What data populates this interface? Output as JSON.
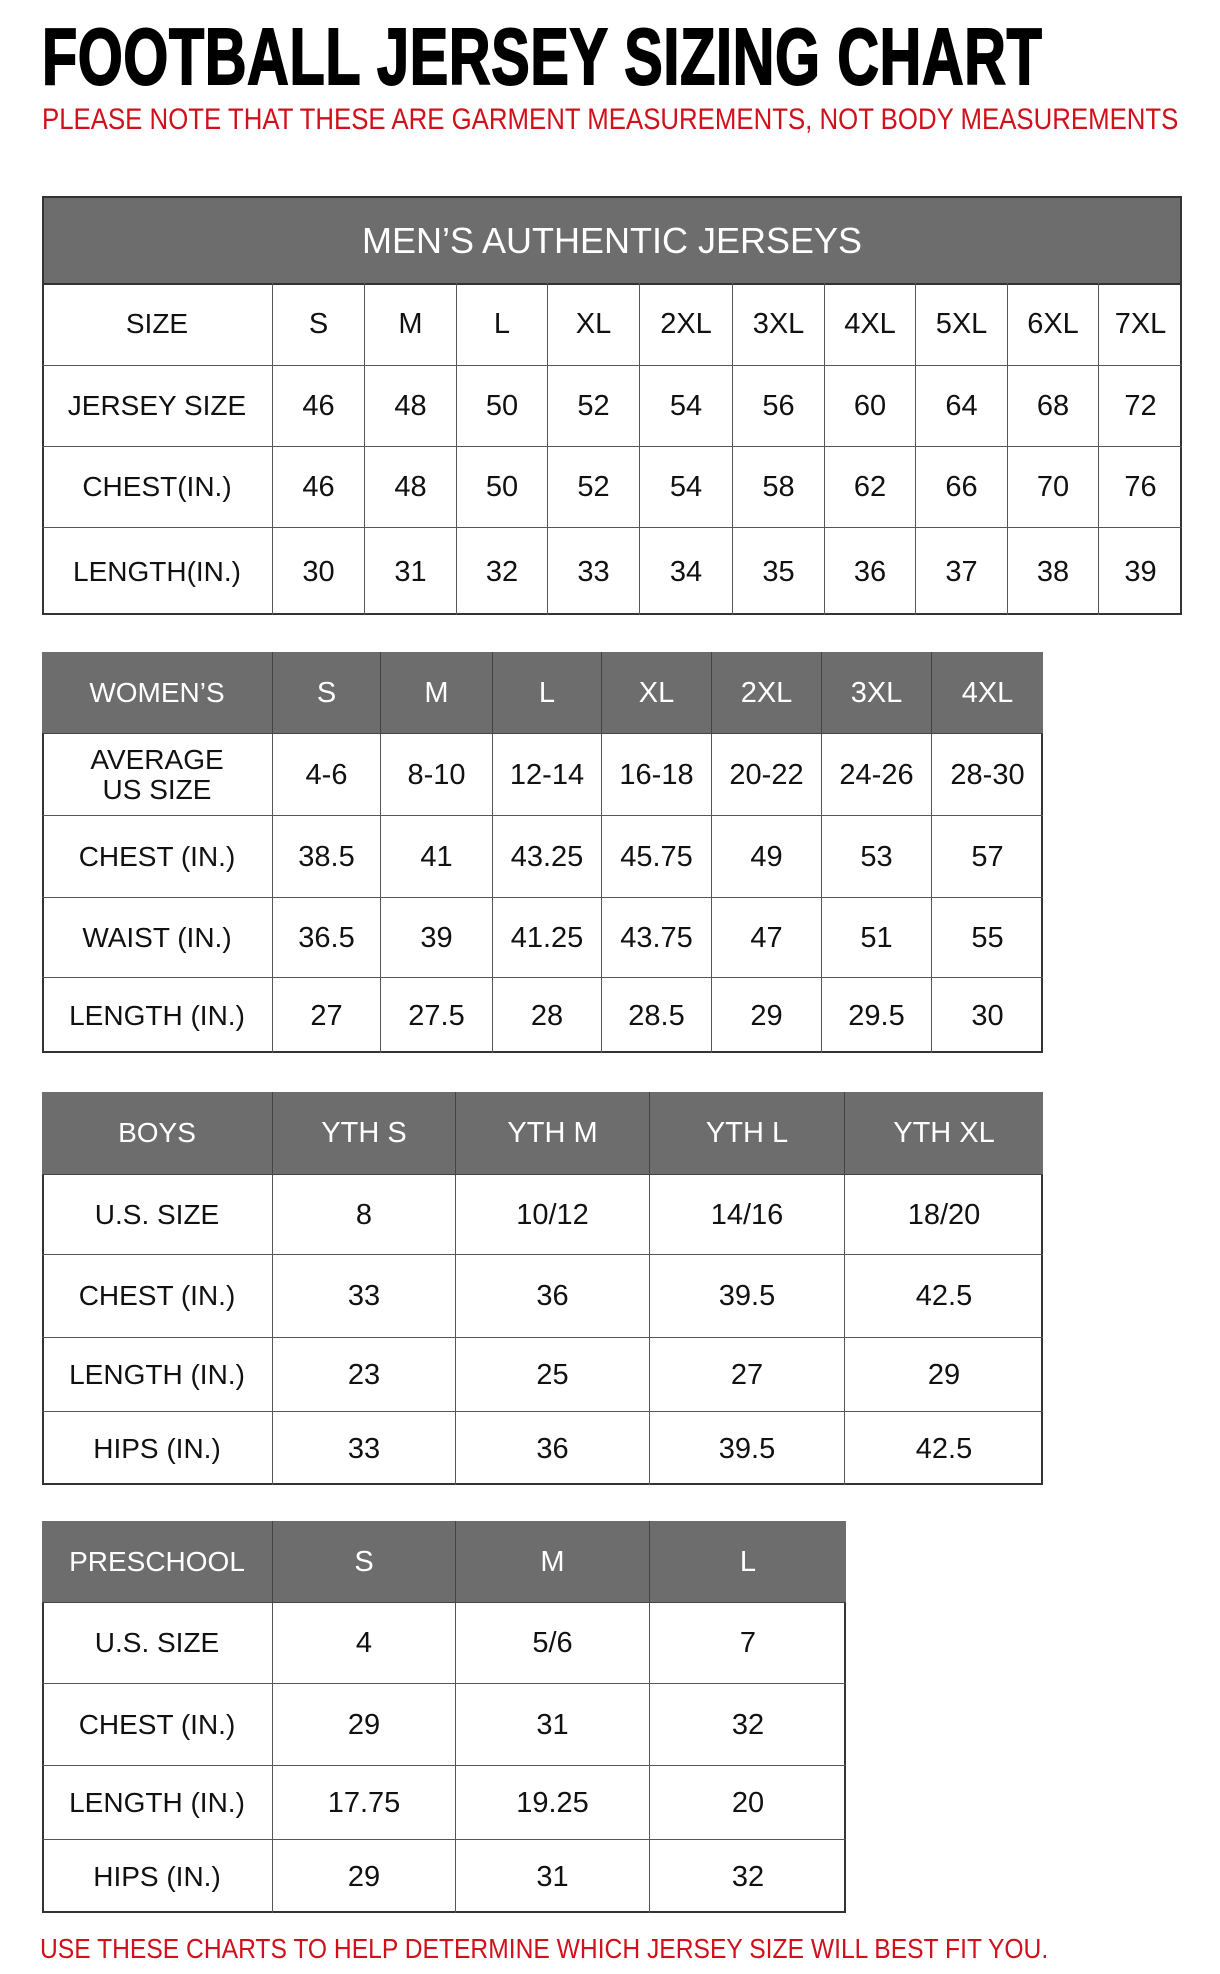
{
  "title": "FOOTBALL JERSEY SIZING CHART",
  "note": "PLEASE NOTE THAT THESE ARE GARMENT MEASUREMENTS, NOT BODY MEASUREMENTS",
  "footer": "USE THESE CHARTS TO HELP DETERMINE WHICH JERSEY SIZE WILL BEST FIT YOU.",
  "colors": {
    "header_bg": "#6d6d6d",
    "note_red": "#d0101a"
  },
  "tables": [
    {
      "id": "mens",
      "banner": "MEN’S AUTHENTIC JERSEYS",
      "rows": [
        [
          "SIZE",
          "S",
          "M",
          "L",
          "XL",
          "2XL",
          "3XL",
          "4XL",
          "5XL",
          "6XL",
          "7XL"
        ],
        [
          "JERSEY SIZE",
          "46",
          "48",
          "50",
          "52",
          "54",
          "56",
          "60",
          "64",
          "68",
          "72"
        ],
        [
          "CHEST(IN.)",
          "46",
          "48",
          "50",
          "52",
          "54",
          "58",
          "62",
          "66",
          "70",
          "76"
        ],
        [
          "LENGTH(IN.)",
          "30",
          "31",
          "32",
          "33",
          "34",
          "35",
          "36",
          "37",
          "38",
          "39"
        ]
      ]
    },
    {
      "id": "womens",
      "rows": [
        [
          "WOMEN’S",
          "S",
          "M",
          "L",
          "XL",
          "2XL",
          "3XL",
          "4XL"
        ],
        [
          "AVERAGE US SIZE",
          "4-6",
          "8-10",
          "12-14",
          "16-18",
          "20-22",
          "24-26",
          "28-30"
        ],
        [
          "CHEST (IN.)",
          "38.5",
          "41",
          "43.25",
          "45.75",
          "49",
          "53",
          "57"
        ],
        [
          "WAIST (IN.)",
          "36.5",
          "39",
          "41.25",
          "43.75",
          "47",
          "51",
          "55"
        ],
        [
          "LENGTH (IN.)",
          "27",
          "27.5",
          "28",
          "28.5",
          "29",
          "29.5",
          "30"
        ]
      ]
    },
    {
      "id": "boys",
      "rows": [
        [
          "BOYS",
          "YTH S",
          "YTH M",
          "YTH L",
          "YTH XL"
        ],
        [
          "U.S. SIZE",
          "8",
          "10/12",
          "14/16",
          "18/20"
        ],
        [
          "CHEST (IN.)",
          "33",
          "36",
          "39.5",
          "42.5"
        ],
        [
          "LENGTH (IN.)",
          "23",
          "25",
          "27",
          "29"
        ],
        [
          "HIPS (IN.)",
          "33",
          "36",
          "39.5",
          "42.5"
        ]
      ]
    },
    {
      "id": "preschool",
      "rows": [
        [
          "PRESCHOOL",
          "S",
          "M",
          "L"
        ],
        [
          "U.S. SIZE",
          "4",
          "5/6",
          "7"
        ],
        [
          "CHEST (IN.)",
          "29",
          "31",
          "32"
        ],
        [
          "LENGTH (IN.)",
          "17.75",
          "19.25",
          "20"
        ],
        [
          "HIPS (IN.)",
          "29",
          "31",
          "32"
        ]
      ]
    }
  ]
}
